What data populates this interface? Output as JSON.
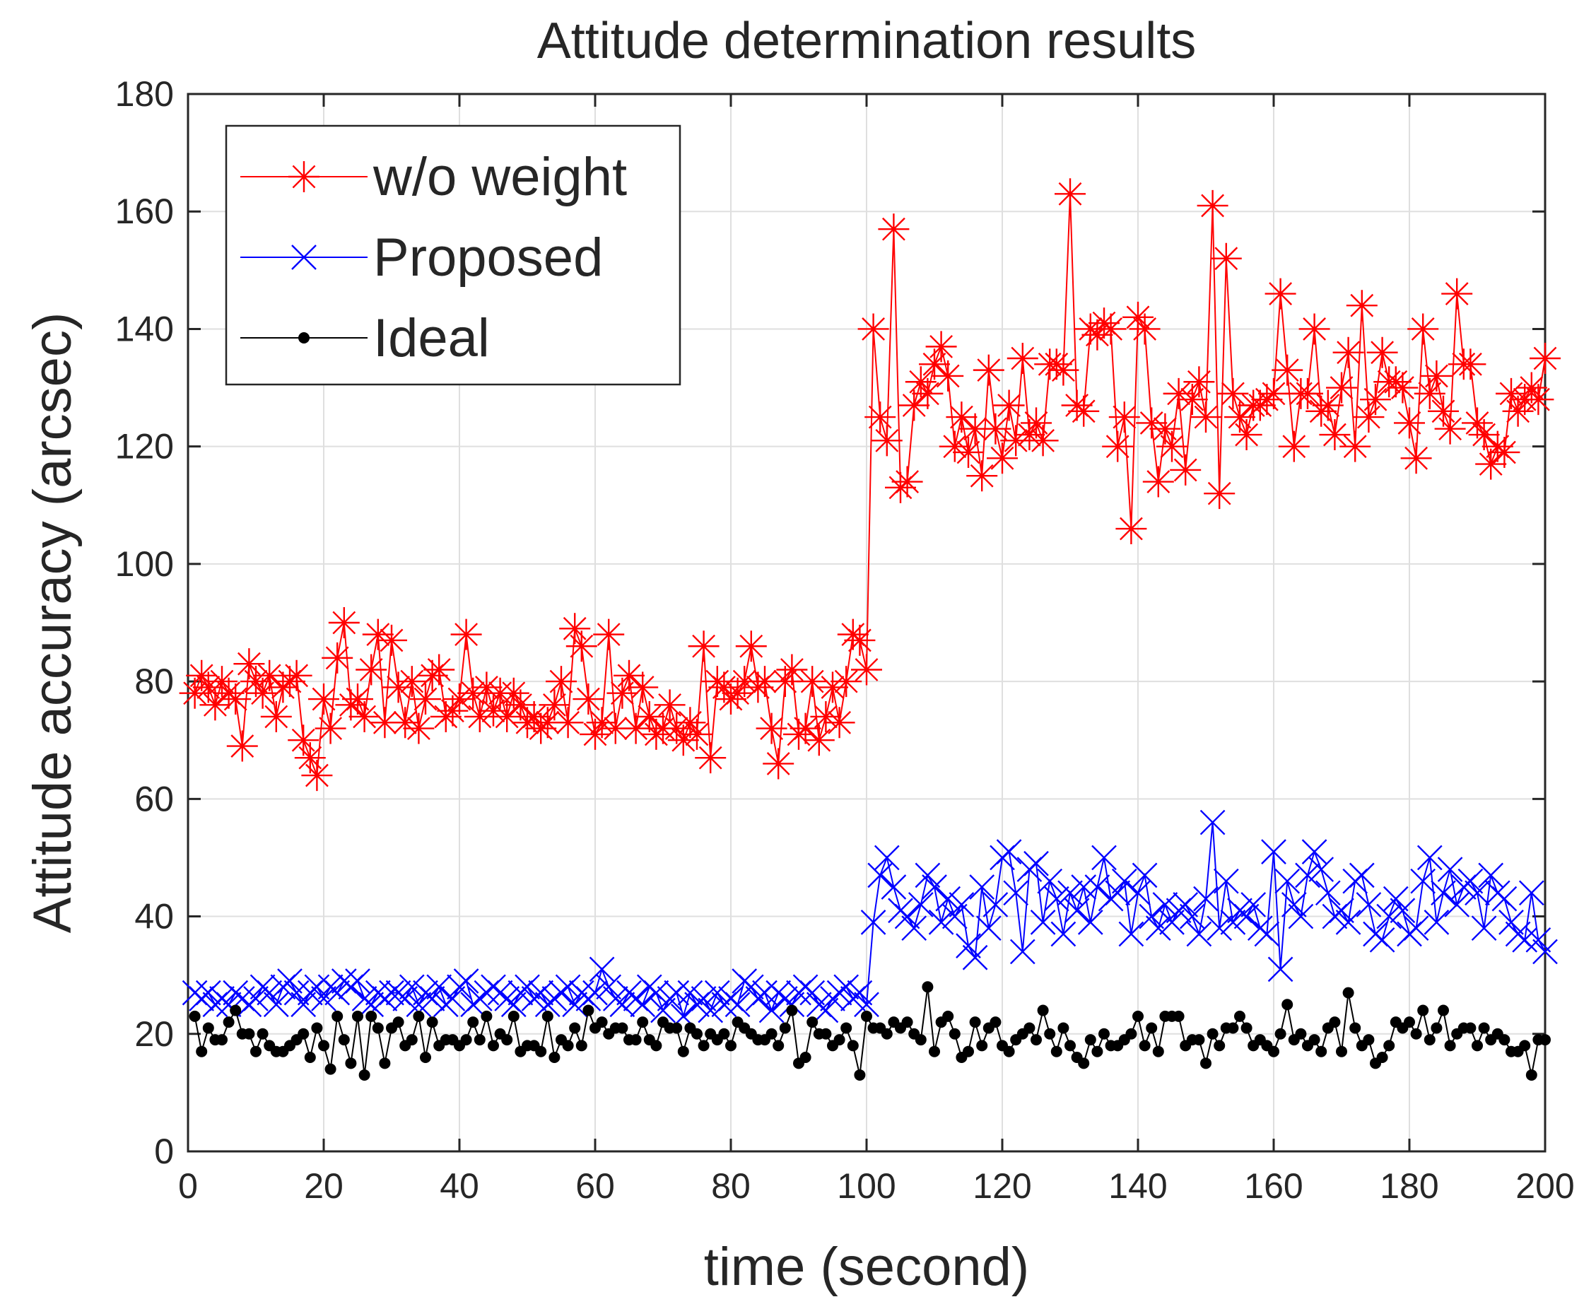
{
  "chart_data": {
    "type": "line",
    "title": "Attitude determination results",
    "xlabel": "time (second)",
    "ylabel": "Attitude accuracy (arcsec)",
    "xlim": [
      0,
      200
    ],
    "ylim": [
      0,
      180
    ],
    "xticks": [
      0,
      20,
      40,
      60,
      80,
      100,
      120,
      140,
      160,
      180,
      200
    ],
    "yticks": [
      0,
      20,
      40,
      60,
      80,
      100,
      120,
      140,
      160,
      180
    ],
    "grid": true,
    "legend_position": "top-left",
    "x": [
      1,
      2,
      3,
      4,
      5,
      6,
      7,
      8,
      9,
      10,
      11,
      12,
      13,
      14,
      15,
      16,
      17,
      18,
      19,
      20,
      21,
      22,
      23,
      24,
      25,
      26,
      27,
      28,
      29,
      30,
      31,
      32,
      33,
      34,
      35,
      36,
      37,
      38,
      39,
      40,
      41,
      42,
      43,
      44,
      45,
      46,
      47,
      48,
      49,
      50,
      51,
      52,
      53,
      54,
      55,
      56,
      57,
      58,
      59,
      60,
      61,
      62,
      63,
      64,
      65,
      66,
      67,
      68,
      69,
      70,
      71,
      72,
      73,
      74,
      75,
      76,
      77,
      78,
      79,
      80,
      81,
      82,
      83,
      84,
      85,
      86,
      87,
      88,
      89,
      90,
      91,
      92,
      93,
      94,
      95,
      96,
      97,
      98,
      99,
      100,
      101,
      102,
      103,
      104,
      105,
      106,
      107,
      108,
      109,
      110,
      111,
      112,
      113,
      114,
      115,
      116,
      117,
      118,
      119,
      120,
      121,
      122,
      123,
      124,
      125,
      126,
      127,
      128,
      129,
      130,
      131,
      132,
      133,
      134,
      135,
      136,
      137,
      138,
      139,
      140,
      141,
      142,
      143,
      144,
      145,
      146,
      147,
      148,
      149,
      150,
      151,
      152,
      153,
      154,
      155,
      156,
      157,
      158,
      159,
      160,
      161,
      162,
      163,
      164,
      165,
      166,
      167,
      168,
      169,
      170,
      171,
      172,
      173,
      174,
      175,
      176,
      177,
      178,
      179,
      180,
      181,
      182,
      183,
      184,
      185,
      186,
      187,
      188,
      189,
      190,
      191,
      192,
      193,
      194,
      195,
      196,
      197,
      198,
      199,
      200
    ],
    "series": [
      {
        "name": "w/o weight",
        "color": "#ff0000",
        "marker": "asterisk",
        "values": [
          78,
          81,
          79,
          76,
          80,
          78,
          77,
          69,
          83,
          80,
          78,
          81,
          74,
          79,
          80,
          81,
          70,
          67,
          64,
          77,
          72,
          84,
          90,
          76,
          77,
          74,
          82,
          88,
          73,
          87,
          79,
          73,
          80,
          72,
          77,
          81,
          82,
          74,
          75,
          77,
          88,
          78,
          74,
          79,
          75,
          78,
          74,
          78,
          76,
          73,
          74,
          72,
          73,
          76,
          80,
          73,
          89,
          86,
          77,
          71,
          73,
          88,
          72,
          78,
          81,
          72,
          79,
          74,
          71,
          72,
          76,
          72,
          70,
          73,
          71,
          86,
          67,
          80,
          79,
          77,
          78,
          80,
          86,
          79,
          80,
          72,
          66,
          80,
          82,
          71,
          72,
          80,
          70,
          74,
          79,
          73,
          80,
          88,
          87,
          82,
          140,
          125,
          121,
          157,
          113,
          114,
          127,
          131,
          129,
          134,
          137,
          132,
          120,
          125,
          119,
          123,
          115,
          133,
          123,
          118,
          127,
          121,
          135,
          122,
          124,
          121,
          134,
          134,
          133,
          163,
          127,
          126,
          140,
          139,
          141,
          140,
          120,
          125,
          106,
          142,
          140,
          124,
          114,
          123,
          120,
          129,
          116,
          128,
          131,
          125,
          161,
          112,
          152,
          129,
          125,
          122,
          127,
          127,
          128,
          129,
          146,
          133,
          120,
          129,
          129,
          140,
          126,
          127,
          122,
          130,
          136,
          120,
          144,
          125,
          128,
          136,
          131,
          131,
          130,
          124,
          118,
          140,
          129,
          132,
          126,
          123,
          146,
          134,
          134,
          124,
          122,
          117,
          120,
          119,
          129,
          126,
          128,
          130,
          128,
          135
        ]
      },
      {
        "name": "Proposed",
        "color": "#0000ff",
        "marker": "x",
        "values": [
          27,
          26,
          27,
          25,
          26,
          25,
          27,
          26,
          25,
          26,
          28,
          27,
          25,
          28,
          29,
          27,
          25,
          27,
          28,
          26,
          28,
          27,
          29,
          28,
          29,
          26,
          25,
          27,
          26,
          27,
          27,
          26,
          28,
          25,
          27,
          26,
          28,
          25,
          26,
          28,
          29,
          25,
          26,
          27,
          28,
          27,
          26,
          25,
          27,
          28,
          26,
          27,
          25,
          26,
          27,
          28,
          25,
          27,
          26,
          27,
          31,
          28,
          26,
          25,
          27,
          26,
          25,
          28,
          27,
          24,
          26,
          27,
          23,
          27,
          25,
          26,
          24,
          27,
          25,
          26,
          25,
          29,
          28,
          26,
          27,
          24,
          27,
          26,
          25,
          27,
          28,
          27,
          25,
          24,
          26,
          27,
          28,
          26,
          27,
          25,
          39,
          47,
          50,
          45,
          41,
          40,
          38,
          42,
          47,
          45,
          39,
          43,
          40,
          42,
          35,
          33,
          45,
          38,
          42,
          50,
          51,
          44,
          34,
          48,
          49,
          39,
          46,
          43,
          37,
          44,
          41,
          45,
          39,
          45,
          50,
          43,
          44,
          46,
          37,
          44,
          47,
          40,
          38,
          42,
          39,
          41,
          42,
          40,
          37,
          43,
          56,
          38,
          46,
          39,
          41,
          40,
          42,
          38,
          37,
          51,
          31,
          46,
          42,
          40,
          47,
          51,
          48,
          44,
          40,
          41,
          39,
          46,
          47,
          42,
          37,
          36,
          40,
          43,
          41,
          37,
          38,
          46,
          50,
          39,
          44,
          48,
          42,
          45,
          46,
          44,
          38,
          47,
          44,
          43,
          39,
          37,
          36,
          44,
          36,
          34
        ]
      },
      {
        "name": "Ideal",
        "color": "#000000",
        "marker": "dot",
        "values": [
          23,
          17,
          21,
          19,
          19,
          22,
          24,
          20,
          20,
          17,
          20,
          18,
          17,
          17,
          18,
          19,
          20,
          16,
          21,
          18,
          14,
          23,
          19,
          15,
          23,
          13,
          23,
          21,
          15,
          21,
          22,
          18,
          19,
          23,
          16,
          22,
          18,
          19,
          19,
          18,
          19,
          22,
          19,
          23,
          18,
          20,
          19,
          23,
          17,
          18,
          18,
          17,
          23,
          16,
          19,
          18,
          21,
          18,
          24,
          21,
          22,
          20,
          21,
          21,
          19,
          19,
          22,
          19,
          18,
          22,
          21,
          21,
          17,
          21,
          20,
          18,
          20,
          19,
          20,
          18,
          22,
          21,
          20,
          19,
          19,
          20,
          18,
          21,
          24,
          15,
          16,
          22,
          20,
          20,
          18,
          19,
          21,
          18,
          13,
          23,
          21,
          21,
          20,
          22,
          21,
          22,
          20,
          19,
          28,
          17,
          22,
          23,
          20,
          16,
          17,
          22,
          18,
          21,
          22,
          18,
          17,
          19,
          20,
          21,
          19,
          24,
          20,
          17,
          21,
          18,
          16,
          15,
          19,
          17,
          20,
          18,
          18,
          19,
          20,
          23,
          18,
          21,
          17,
          23,
          23,
          23,
          18,
          19,
          19,
          15,
          20,
          18,
          21,
          21,
          23,
          21,
          18,
          19,
          18,
          17,
          20,
          25,
          19,
          20,
          18,
          19,
          17,
          21,
          22,
          17,
          27,
          21,
          18,
          19,
          15,
          16,
          18,
          22,
          21,
          22,
          20,
          24,
          19,
          21,
          24,
          18,
          20,
          21,
          21,
          18,
          21,
          19,
          20,
          19,
          17,
          17,
          18,
          13,
          19,
          19
        ]
      }
    ]
  }
}
